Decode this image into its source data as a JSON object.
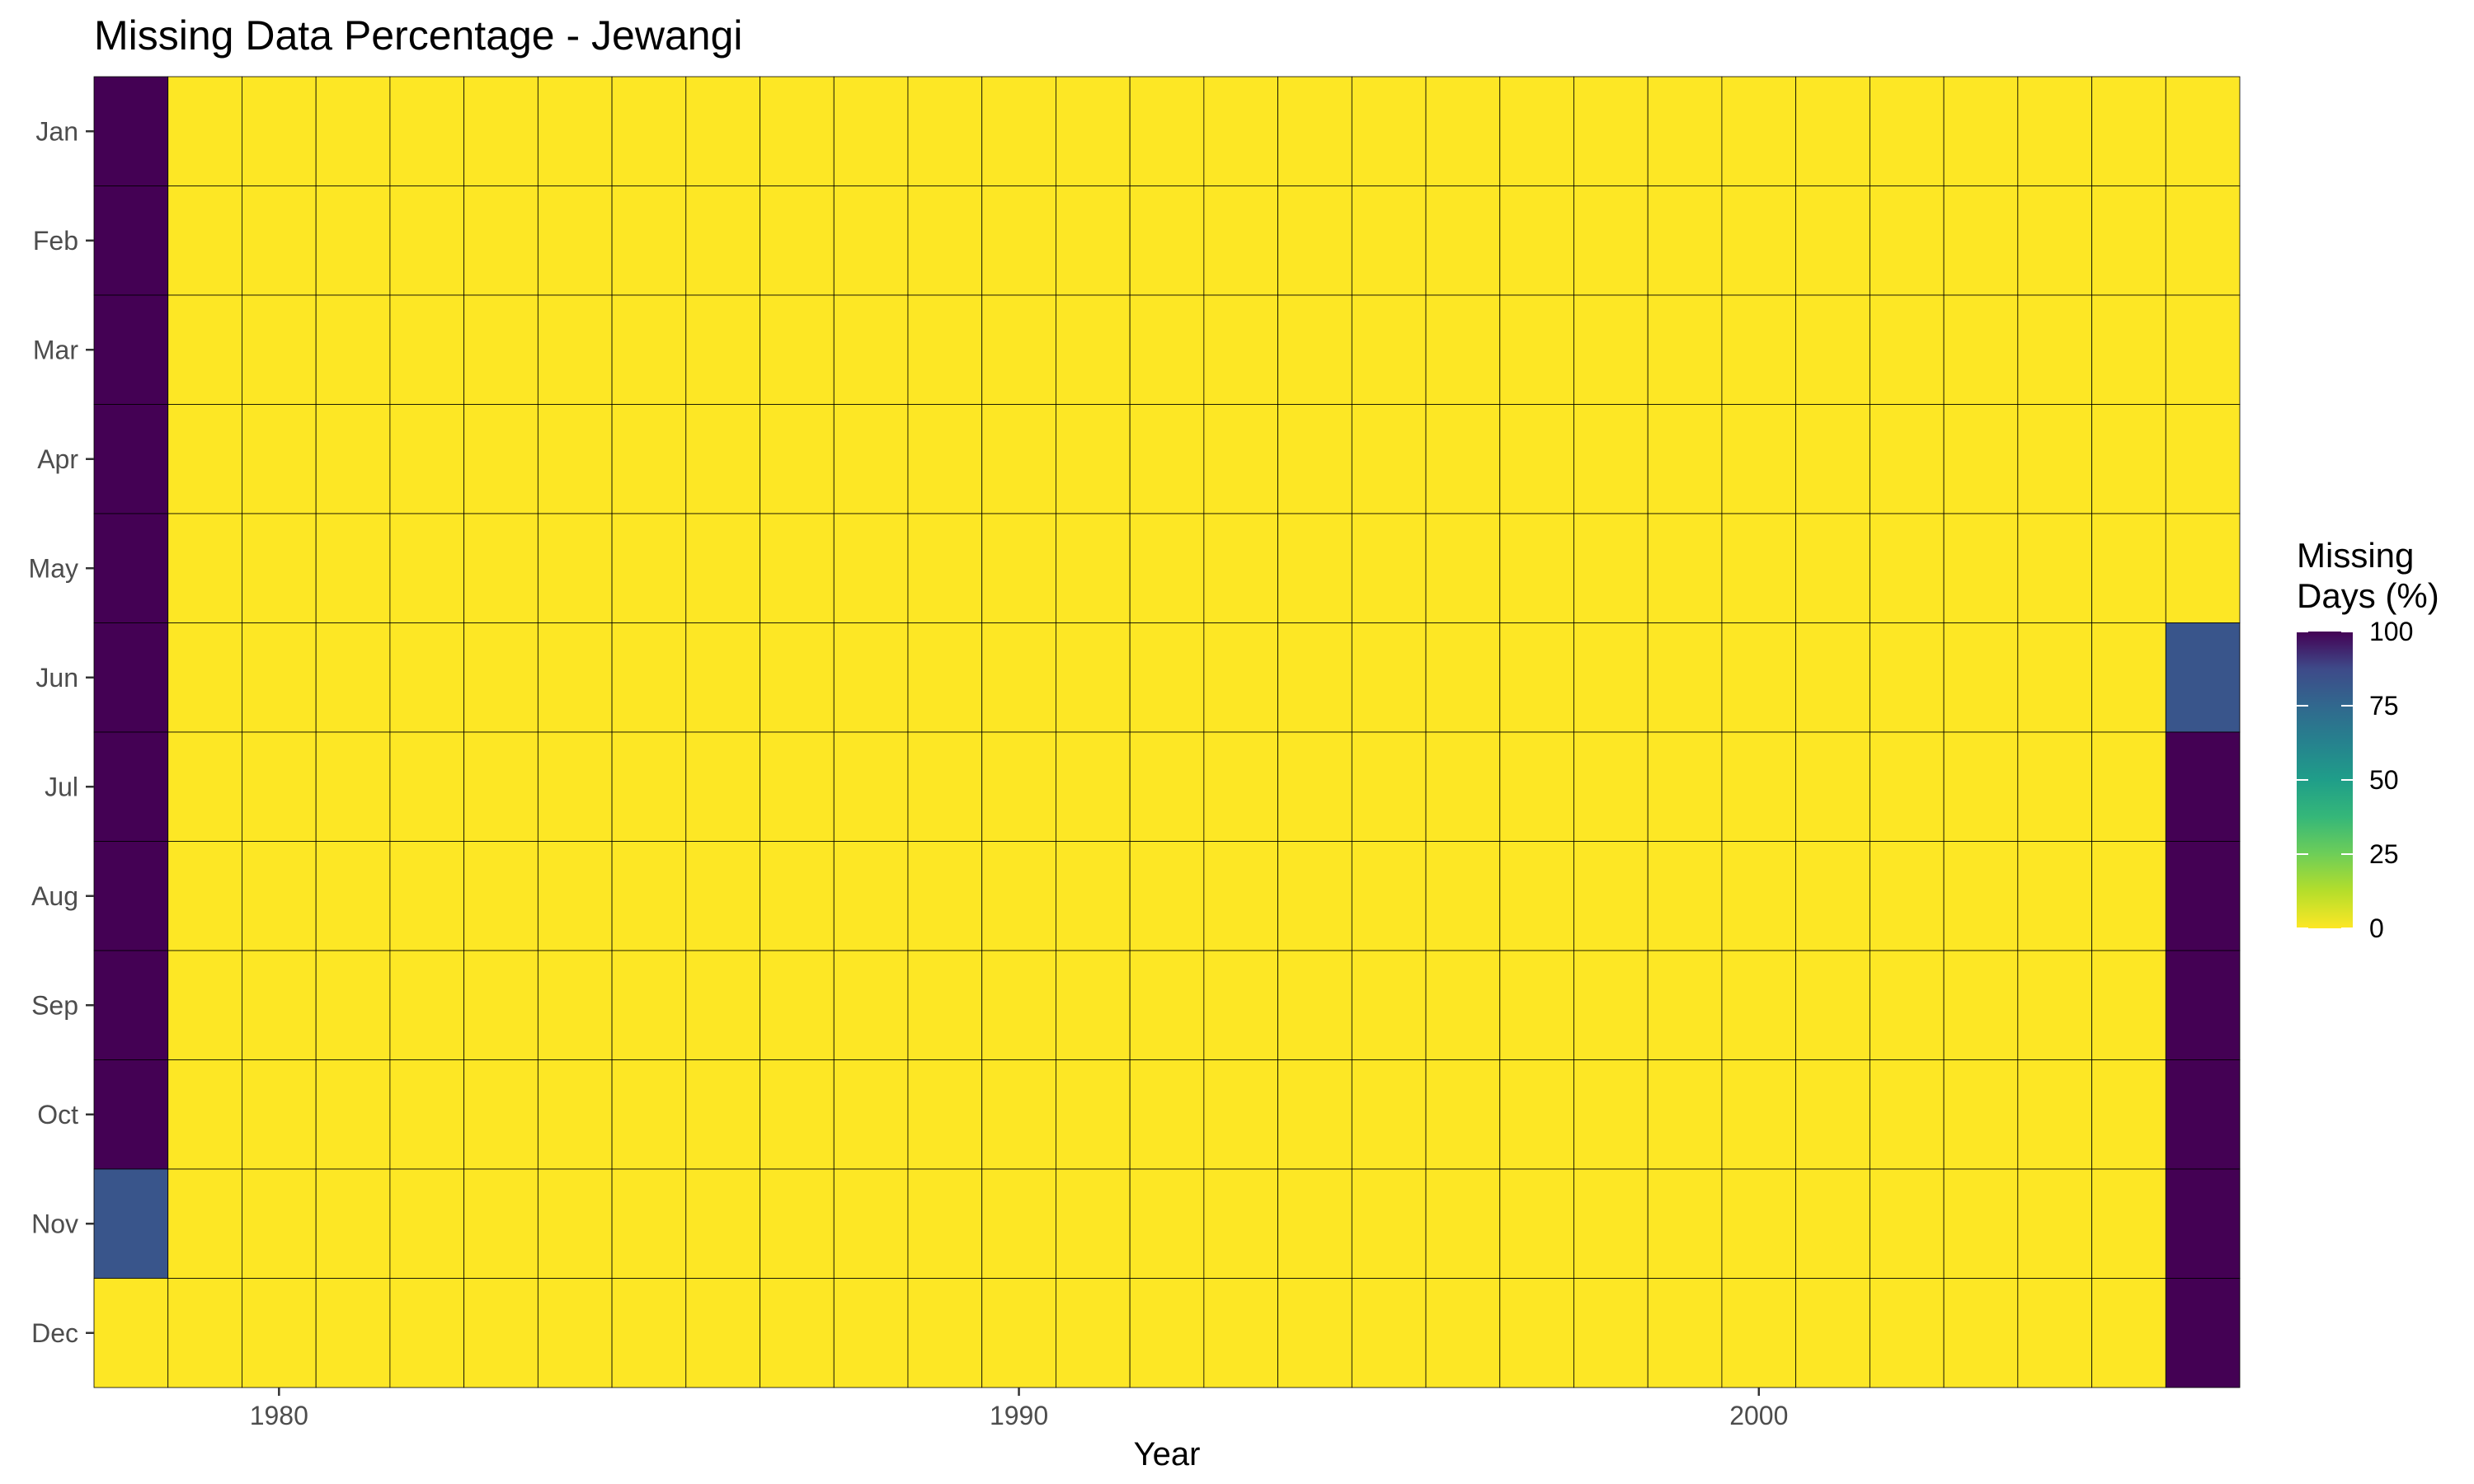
{
  "chart_data": {
    "type": "heatmap",
    "title": "Missing Data Percentage - Jewangi",
    "xlabel": "Year",
    "ylabel": "",
    "years": [
      1978,
      1979,
      1980,
      1981,
      1982,
      1983,
      1984,
      1985,
      1986,
      1987,
      1988,
      1989,
      1990,
      1991,
      1992,
      1993,
      1994,
      1995,
      1996,
      1997,
      1998,
      1999,
      2000,
      2001,
      2002,
      2003,
      2004,
      2005,
      2006
    ],
    "months": [
      "Jan",
      "Feb",
      "Mar",
      "Apr",
      "May",
      "Jun",
      "Jul",
      "Aug",
      "Sep",
      "Oct",
      "Nov",
      "Dec"
    ],
    "x_ticks": [
      1980,
      1990,
      2000
    ],
    "x_tick_labels": [
      "1980",
      "1990",
      "2000"
    ],
    "xlim": [
      1977.5,
      2006.5
    ],
    "default_value": 0,
    "nonzero_cells": [
      {
        "year": 1978,
        "month": "Jan",
        "value": 100
      },
      {
        "year": 1978,
        "month": "Feb",
        "value": 100
      },
      {
        "year": 1978,
        "month": "Mar",
        "value": 100
      },
      {
        "year": 1978,
        "month": "Apr",
        "value": 100
      },
      {
        "year": 1978,
        "month": "May",
        "value": 100
      },
      {
        "year": 1978,
        "month": "Jun",
        "value": 100
      },
      {
        "year": 1978,
        "month": "Jul",
        "value": 100
      },
      {
        "year": 1978,
        "month": "Aug",
        "value": 100
      },
      {
        "year": 1978,
        "month": "Sep",
        "value": 100
      },
      {
        "year": 1978,
        "month": "Oct",
        "value": 100
      },
      {
        "year": 1978,
        "month": "Nov",
        "value": 83
      },
      {
        "year": 2006,
        "month": "Jun",
        "value": 83
      },
      {
        "year": 2006,
        "month": "Jul",
        "value": 100
      },
      {
        "year": 2006,
        "month": "Aug",
        "value": 100
      },
      {
        "year": 2006,
        "month": "Sep",
        "value": 100
      },
      {
        "year": 2006,
        "month": "Oct",
        "value": 100
      },
      {
        "year": 2006,
        "month": "Nov",
        "value": 100
      },
      {
        "year": 2006,
        "month": "Dec",
        "value": 100
      }
    ],
    "legend": {
      "title_line1": "Missing",
      "title_line2": "Days (%)",
      "ticks": [
        100,
        75,
        50,
        25,
        0
      ],
      "range": [
        0,
        100
      ]
    },
    "colorscale": "viridis-reversed",
    "colors": {
      "low": "#FDE725",
      "high": "#440154",
      "cell_border": "#000000",
      "axis_tick": "#333333"
    }
  }
}
